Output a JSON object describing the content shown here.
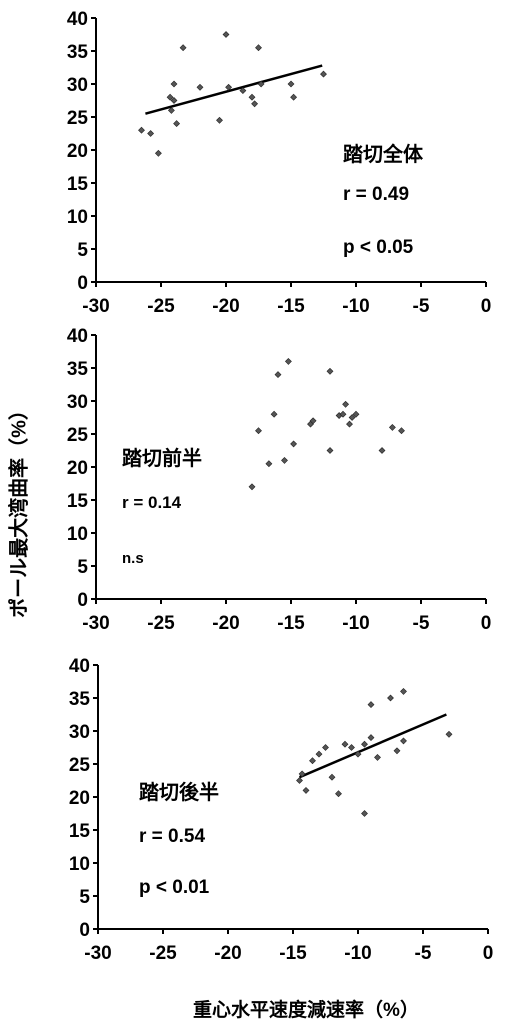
{
  "ylabel": "ポール最大湾曲率（%）",
  "xlabel": "重心水平速度減速率（%）",
  "chart_data": [
    {
      "type": "scatter",
      "title": "",
      "xlim": [
        -30,
        0
      ],
      "ylim": [
        0,
        40
      ],
      "xticks": [
        -30,
        -25,
        -20,
        -15,
        -10,
        -5,
        0
      ],
      "yticks": [
        0,
        5,
        10,
        15,
        20,
        25,
        30,
        35,
        40
      ],
      "annotations": [
        "踏切全体",
        "r = 0.49",
        "p < 0.05"
      ],
      "trendline": {
        "x": [
          -26.2,
          -12.6
        ],
        "y": [
          25.5,
          32.8
        ]
      },
      "points": [
        {
          "x": -26.5,
          "y": 23.0
        },
        {
          "x": -25.8,
          "y": 22.5
        },
        {
          "x": -25.2,
          "y": 19.5
        },
        {
          "x": -24.3,
          "y": 28.0
        },
        {
          "x": -24.2,
          "y": 26.0
        },
        {
          "x": -24.0,
          "y": 27.5
        },
        {
          "x": -24.0,
          "y": 30.0
        },
        {
          "x": -23.8,
          "y": 24.0
        },
        {
          "x": -23.3,
          "y": 35.5
        },
        {
          "x": -22.0,
          "y": 29.5
        },
        {
          "x": -20.5,
          "y": 24.5
        },
        {
          "x": -20.0,
          "y": 37.5
        },
        {
          "x": -19.8,
          "y": 29.5
        },
        {
          "x": -18.7,
          "y": 29.0
        },
        {
          "x": -18.0,
          "y": 28.0
        },
        {
          "x": -17.8,
          "y": 27.0
        },
        {
          "x": -17.5,
          "y": 35.5
        },
        {
          "x": -17.3,
          "y": 30.0
        },
        {
          "x": -15.0,
          "y": 30.0
        },
        {
          "x": -14.8,
          "y": 28.0
        },
        {
          "x": -12.5,
          "y": 31.5
        }
      ]
    },
    {
      "type": "scatter",
      "title": "",
      "xlim": [
        -30,
        0
      ],
      "ylim": [
        0,
        40
      ],
      "xticks": [
        -30,
        -25,
        -20,
        -15,
        -10,
        -5,
        0
      ],
      "yticks": [
        0,
        5,
        10,
        15,
        20,
        25,
        30,
        35,
        40
      ],
      "annotations": [
        "踏切前半",
        "r = 0.14",
        "n.s"
      ],
      "points": [
        {
          "x": -18.0,
          "y": 17.0
        },
        {
          "x": -17.5,
          "y": 25.5
        },
        {
          "x": -16.7,
          "y": 20.5
        },
        {
          "x": -16.3,
          "y": 28.0
        },
        {
          "x": -16.0,
          "y": 34.0
        },
        {
          "x": -15.5,
          "y": 21.0
        },
        {
          "x": -15.2,
          "y": 36.0
        },
        {
          "x": -14.8,
          "y": 23.5
        },
        {
          "x": -13.5,
          "y": 26.5
        },
        {
          "x": -13.3,
          "y": 27.0
        },
        {
          "x": -12.0,
          "y": 34.5
        },
        {
          "x": -12.0,
          "y": 22.5
        },
        {
          "x": -11.3,
          "y": 27.8
        },
        {
          "x": -11.0,
          "y": 28.0
        },
        {
          "x": -10.8,
          "y": 29.5
        },
        {
          "x": -10.5,
          "y": 26.5
        },
        {
          "x": -10.3,
          "y": 27.5
        },
        {
          "x": -10.0,
          "y": 28.0
        },
        {
          "x": -8.0,
          "y": 22.5
        },
        {
          "x": -7.2,
          "y": 26.0
        },
        {
          "x": -6.5,
          "y": 25.5
        }
      ]
    },
    {
      "type": "scatter",
      "title": "",
      "xlim": [
        -30,
        0
      ],
      "ylim": [
        0,
        40
      ],
      "xticks": [
        -30,
        -25,
        -20,
        -15,
        -10,
        -5,
        0
      ],
      "yticks": [
        0,
        5,
        10,
        15,
        20,
        25,
        30,
        35,
        40
      ],
      "annotations": [
        "踏切後半",
        "r = 0.54",
        "p < 0.01"
      ],
      "trendline": {
        "x": [
          -14.5,
          -3.2
        ],
        "y": [
          23.0,
          32.5
        ]
      },
      "points": [
        {
          "x": -14.5,
          "y": 22.5
        },
        {
          "x": -14.3,
          "y": 23.5
        },
        {
          "x": -14.0,
          "y": 21.0
        },
        {
          "x": -13.5,
          "y": 25.5
        },
        {
          "x": -13.0,
          "y": 26.5
        },
        {
          "x": -12.5,
          "y": 27.5
        },
        {
          "x": -12.0,
          "y": 23.0
        },
        {
          "x": -11.5,
          "y": 20.5
        },
        {
          "x": -11.0,
          "y": 28.0
        },
        {
          "x": -10.5,
          "y": 27.5
        },
        {
          "x": -10.0,
          "y": 26.5
        },
        {
          "x": -9.5,
          "y": 28.0
        },
        {
          "x": -9.5,
          "y": 17.5
        },
        {
          "x": -9.0,
          "y": 34.0
        },
        {
          "x": -9.0,
          "y": 29.0
        },
        {
          "x": -8.5,
          "y": 26.0
        },
        {
          "x": -7.5,
          "y": 35.0
        },
        {
          "x": -7.0,
          "y": 27.0
        },
        {
          "x": -6.5,
          "y": 28.5
        },
        {
          "x": -6.5,
          "y": 36.0
        },
        {
          "x": -3.0,
          "y": 29.5
        }
      ]
    }
  ]
}
